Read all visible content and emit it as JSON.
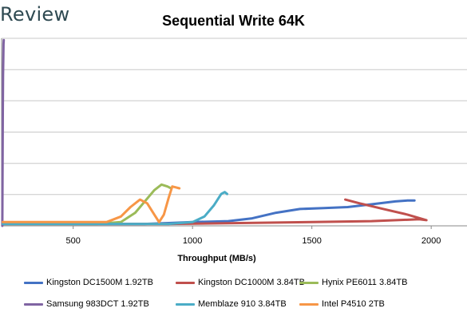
{
  "brand": {
    "text": "Review"
  },
  "chart_data": {
    "type": "line",
    "title": "Sequential Write 64K",
    "xlabel": "Throughput (MB/s)",
    "ylabel": "",
    "xlim": [
      200,
      2150
    ],
    "ylim": [
      0,
      100
    ],
    "xticks": [
      500,
      1000,
      1500,
      2000
    ],
    "y_gridlines": [
      0,
      16.7,
      33.3,
      50,
      66.7,
      83.3,
      100
    ],
    "grid": true,
    "legend_position": "bottom",
    "series": [
      {
        "name": "Kingston DC1500M 1.92TB",
        "color": "#4472C4",
        "points": [
          [
            205,
            1
          ],
          [
            500,
            1
          ],
          [
            800,
            1
          ],
          [
            900,
            1.5
          ],
          [
            1000,
            2
          ],
          [
            1150,
            2.5
          ],
          [
            1250,
            4
          ],
          [
            1350,
            7
          ],
          [
            1450,
            9
          ],
          [
            1550,
            9.5
          ],
          [
            1650,
            10
          ],
          [
            1750,
            11.5
          ],
          [
            1850,
            13
          ],
          [
            1900,
            13.5
          ],
          [
            1930,
            13.5
          ]
        ]
      },
      {
        "name": "Kingston DC1000M 3.84TB",
        "color": "#C0504D",
        "points": [
          [
            205,
            1
          ],
          [
            600,
            1
          ],
          [
            900,
            1
          ],
          [
            1200,
            1.5
          ],
          [
            1500,
            2
          ],
          [
            1750,
            2.5
          ],
          [
            1950,
            3.5
          ],
          [
            1980,
            3
          ],
          [
            1900,
            6
          ],
          [
            1800,
            9
          ],
          [
            1700,
            12
          ],
          [
            1640,
            14
          ]
        ]
      },
      {
        "name": "Hynix PE6011 3.84TB",
        "color": "#9BBB59",
        "points": [
          [
            205,
            1
          ],
          [
            600,
            1
          ],
          [
            700,
            2
          ],
          [
            760,
            7
          ],
          [
            800,
            13
          ],
          [
            840,
            19
          ],
          [
            870,
            22
          ],
          [
            895,
            21
          ],
          [
            910,
            20
          ]
        ]
      },
      {
        "name": "Samsung 983DCT 1.92TB",
        "color": "#8064A2",
        "points": [
          [
            203,
            0
          ],
          [
            204,
            30
          ],
          [
            205,
            60
          ],
          [
            206,
            80
          ],
          [
            207,
            88
          ],
          [
            208,
            97
          ],
          [
            209,
            99
          ]
        ]
      },
      {
        "name": "Memblaze 910 3.84TB",
        "color": "#4BACC6",
        "points": [
          [
            205,
            1
          ],
          [
            600,
            1
          ],
          [
            900,
            1
          ],
          [
            1000,
            2
          ],
          [
            1050,
            5
          ],
          [
            1090,
            11
          ],
          [
            1120,
            17
          ],
          [
            1135,
            18
          ],
          [
            1145,
            17
          ]
        ]
      },
      {
        "name": "Intel P4510 2TB",
        "color": "#F79646",
        "points": [
          [
            205,
            2
          ],
          [
            500,
            2
          ],
          [
            640,
            2
          ],
          [
            700,
            5
          ],
          [
            740,
            10
          ],
          [
            780,
            14
          ],
          [
            810,
            12
          ],
          [
            840,
            6
          ],
          [
            860,
            2
          ],
          [
            880,
            6
          ],
          [
            900,
            15
          ],
          [
            915,
            21
          ],
          [
            930,
            20.5
          ],
          [
            945,
            20
          ]
        ]
      }
    ]
  }
}
